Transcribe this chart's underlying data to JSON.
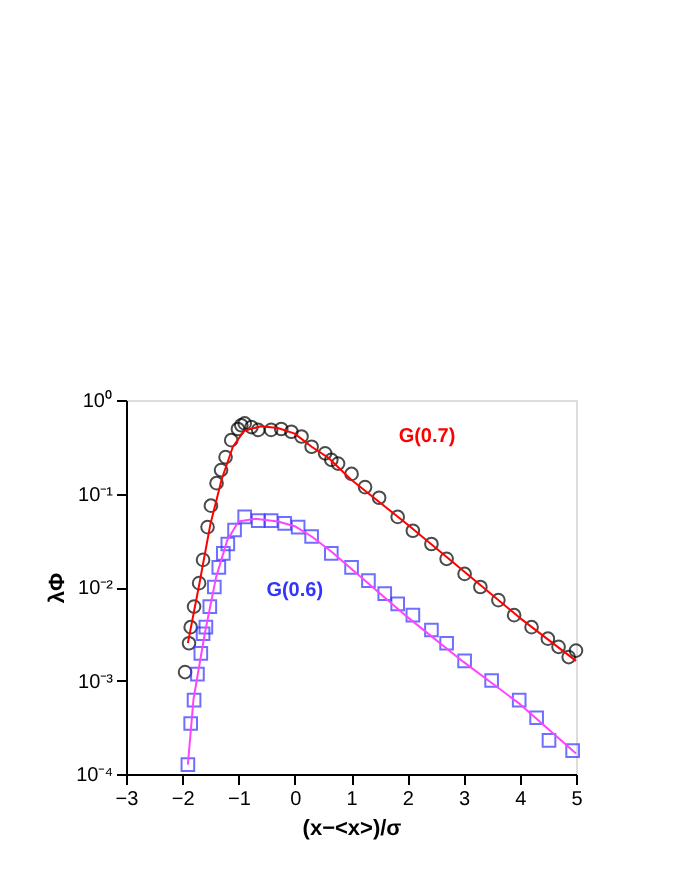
{
  "chart_data": {
    "type": "scatter",
    "xlabel": "(x−<x>)/σ",
    "ylabel": "λΦ",
    "log": "y",
    "grid": false,
    "xlim": [
      -3,
      5
    ],
    "xticks": [
      -3,
      -2,
      -1,
      0,
      1,
      2,
      3,
      4,
      5
    ],
    "ylim": [
      0.0001,
      1
    ],
    "yticks": [
      {
        "value": 0.0001,
        "label": "10⁻⁴"
      },
      {
        "value": 0.001,
        "label": "10⁻³"
      },
      {
        "value": 0.01,
        "label": "10⁻²"
      },
      {
        "value": 0.1,
        "label": "10⁻¹"
      },
      {
        "value": 1,
        "label": "10⁰"
      }
    ],
    "annotations": [
      "G(0.7)",
      "G(0.6)"
    ],
    "series": [
      {
        "marker": "circle",
        "color": "#000000",
        "x": [
          -1.95,
          -1.88,
          -1.85,
          -1.79,
          -1.7,
          -1.63,
          -1.55,
          -1.49,
          -1.39,
          -1.31,
          -1.23,
          -1.13,
          -1.01,
          -0.95,
          -0.89,
          -0.77,
          -0.65,
          -0.42,
          -0.24,
          -0.06,
          0.12,
          0.3,
          0.54,
          0.65,
          0.77,
          1.01,
          1.25,
          1.5,
          1.83,
          2.1,
          2.43,
          2.7,
          3.02,
          3.3,
          3.62,
          3.9,
          4.21,
          4.5,
          4.69,
          4.87,
          5.0
        ],
        "values": [
          0.00123,
          0.0025,
          0.00372,
          0.00617,
          0.011,
          0.0195,
          0.0437,
          0.0741,
          0.129,
          0.178,
          0.245,
          0.372,
          0.49,
          0.537,
          0.562,
          0.513,
          0.479,
          0.479,
          0.49,
          0.457,
          0.407,
          0.316,
          0.269,
          0.229,
          0.209,
          0.162,
          0.117,
          0.09,
          0.0562,
          0.04,
          0.0288,
          0.02,
          0.0138,
          0.01,
          0.00724,
          0.005,
          0.00372,
          0.0028,
          0.00229,
          0.00178,
          0.00209
        ]
      },
      {
        "type": "line",
        "marker": "none",
        "line_style": "solid",
        "color": "#ff0000",
        "x": [
          -1.9,
          -1.7,
          -1.5,
          -1.3,
          -1.1,
          -0.9,
          -0.6,
          -0.3,
          0,
          0.3,
          0.6,
          1,
          2,
          3,
          4,
          5
        ],
        "values": [
          0.00251,
          0.0105,
          0.0468,
          0.141,
          0.316,
          0.468,
          0.525,
          0.501,
          0.437,
          0.316,
          0.24,
          0.141,
          0.0468,
          0.0148,
          0.00468,
          0.00162
        ]
      },
      {
        "marker": "square",
        "color": "#3333ff",
        "x": [
          -1.9,
          -1.85,
          -1.79,
          -1.73,
          -1.67,
          -1.63,
          -1.58,
          -1.51,
          -1.43,
          -1.35,
          -1.27,
          -1.19,
          -1.07,
          -0.89,
          -0.65,
          -0.42,
          -0.18,
          0.06,
          0.3,
          0.65,
          1.01,
          1.31,
          1.6,
          1.83,
          2.1,
          2.43,
          2.7,
          3.02,
          3.5,
          3.99,
          4.3,
          4.52,
          4.94
        ],
        "values": [
          0.000126,
          0.000347,
          0.000617,
          0.00117,
          0.00195,
          0.00316,
          0.00372,
          0.00617,
          0.01,
          0.0162,
          0.0229,
          0.0288,
          0.0407,
          0.0562,
          0.0513,
          0.0513,
          0.0479,
          0.0437,
          0.0347,
          0.0229,
          0.0162,
          0.0117,
          0.0085,
          0.00661,
          0.005,
          0.00347,
          0.0025,
          0.00162,
          0.001,
          0.000617,
          0.0004,
          0.000229,
          0.000178
        ]
      },
      {
        "type": "line",
        "marker": "none",
        "line_style": "solid",
        "color": "#ff44ff",
        "x": [
          -1.9,
          -1.8,
          -1.6,
          -1.4,
          -1.2,
          -1,
          -0.7,
          -0.3,
          0,
          0.3,
          0.65,
          1,
          2,
          3,
          4,
          5
        ],
        "values": [
          0.000126,
          0.00063,
          0.00316,
          0.0126,
          0.0316,
          0.0501,
          0.0537,
          0.0501,
          0.0447,
          0.0347,
          0.024,
          0.0158,
          0.00479,
          0.00158,
          0.000562,
          0.000166
        ]
      }
    ]
  }
}
